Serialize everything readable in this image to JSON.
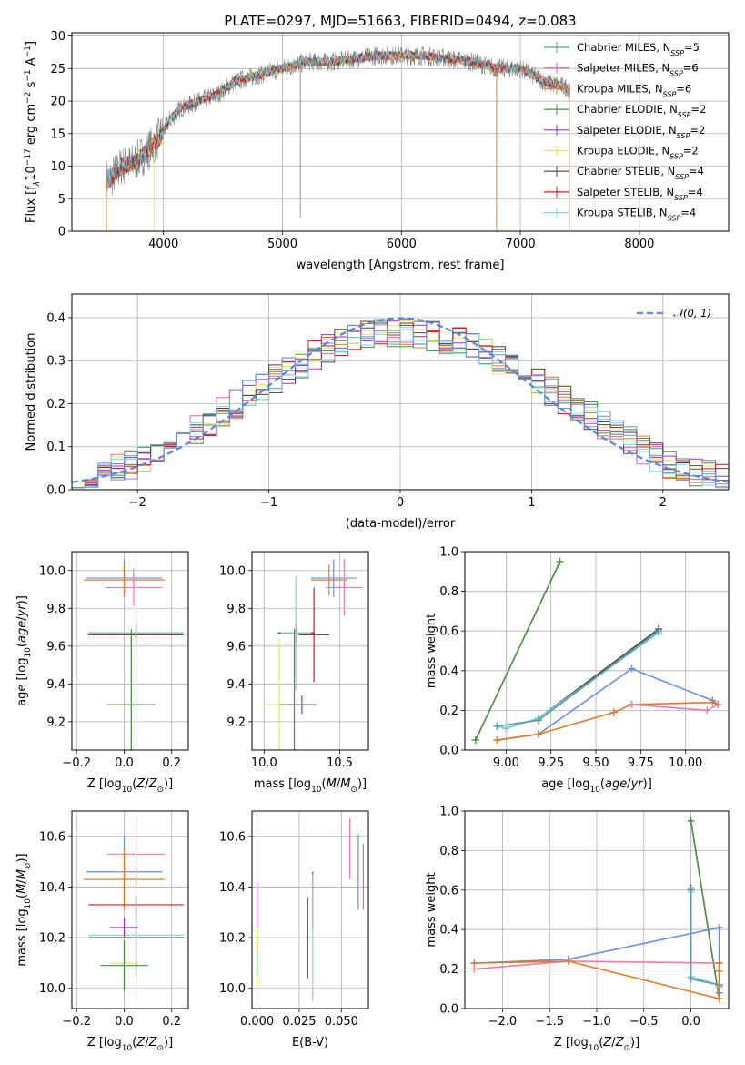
{
  "colors": {
    "Chabrier MILES": "#5b9ca0",
    "Salpeter MILES": "#d966a8",
    "Kroupa MILES": "#e07b2a",
    "Chabrier ELODIE": "#4a8a4a",
    "Salpeter ELODIE": "#9b30c8",
    "Kroupa ELODIE": "#e6e65a",
    "Chabrier STELIB": "#444444",
    "Salpeter STELIB": "#cc1f1f",
    "Kroupa STELIB": "#7fd6e0",
    "blue": "#6a8ee0",
    "pink": "#f07aa8",
    "grid": "#b0b0b0",
    "data": "#808080",
    "normal_curve": "#5b86d8"
  },
  "chart_data": [
    {
      "id": "spectrum",
      "type": "line",
      "title": "PLATE=0297, MJD=51663, FIBERID=0494, z=0.083",
      "xlabel": "wavelength [Angstrom, rest frame]",
      "ylabel_parts": [
        "Flux [f",
        "λ",
        "10",
        "−17",
        " erg cm",
        "−2",
        " s",
        "−1",
        " A",
        "−1",
        "]"
      ],
      "xlim": [
        3230,
        8750
      ],
      "ylim": [
        0,
        30.5
      ],
      "xticks": [
        4000,
        5000,
        6000,
        7000,
        8000
      ],
      "yticks": [
        0,
        5,
        10,
        15,
        20,
        25,
        30
      ],
      "anchors_x": [
        3550,
        3650,
        3750,
        3850,
        3950,
        4050,
        4150,
        4300,
        4450,
        4600,
        4800,
        5000,
        5200,
        5400,
        5600,
        5800,
        6000,
        6200,
        6400,
        6600,
        6800,
        7000,
        7200,
        7400
      ],
      "anchors_y": [
        8,
        10,
        10.5,
        12,
        14,
        17,
        19,
        20,
        21,
        23,
        24,
        25,
        26,
        26,
        26.5,
        27,
        27,
        27,
        26.5,
        26,
        25,
        25,
        23,
        22
      ],
      "model_dips": [
        {
          "x": 3520,
          "series": "Kroupa MILES"
        },
        {
          "x": 3920,
          "series": "Kroupa ELODIE"
        },
        {
          "x": 6800,
          "series": "Kroupa MILES"
        },
        {
          "x": 7410,
          "series": "Kroupa MILES"
        }
      ],
      "legend": [
        {
          "label": "Chabrier MILES, N",
          "sub": "SSP",
          "tail": "=5"
        },
        {
          "label": "Salpeter MILES, N",
          "sub": "SSP",
          "tail": "=6"
        },
        {
          "label": "Kroupa MILES, N",
          "sub": "SSP",
          "tail": "=6"
        },
        {
          "label": "Chabrier ELODIE, N",
          "sub": "SSP",
          "tail": "=2"
        },
        {
          "label": "Salpeter ELODIE, N",
          "sub": "SSP",
          "tail": "=2"
        },
        {
          "label": "Kroupa ELODIE, N",
          "sub": "SSP",
          "tail": "=2"
        },
        {
          "label": "Chabrier STELIB, N",
          "sub": "SSP",
          "tail": "=4"
        },
        {
          "label": "Salpeter STELIB, N",
          "sub": "SSP",
          "tail": "=4"
        },
        {
          "label": "Kroupa STELIB, N",
          "sub": "SSP",
          "tail": "=4"
        }
      ],
      "legend_series": [
        "Chabrier MILES",
        "Salpeter MILES",
        "Kroupa MILES",
        "Chabrier ELODIE",
        "Salpeter ELODIE",
        "Kroupa ELODIE",
        "Chabrier STELIB",
        "Salpeter STELIB",
        "Kroupa STELIB"
      ],
      "legend_position": "upper right"
    },
    {
      "id": "residuals",
      "type": "step",
      "xlabel": "(data-model)/error",
      "ylabel": "Normed distribution",
      "xlim": [
        -2.5,
        2.5
      ],
      "ylim": [
        0,
        0.455
      ],
      "xticks": [
        -2,
        -1,
        0,
        1,
        2
      ],
      "yticks": [
        0.0,
        0.1,
        0.2,
        0.3,
        0.4
      ],
      "bin_width": 0.1,
      "envelope_x": [
        -2.5,
        -2.0,
        -1.5,
        -1.0,
        -0.5,
        -0.2,
        0.0,
        0.2,
        0.5,
        1.0,
        1.5,
        2.0,
        2.5
      ],
      "envelope_y": [
        0.03,
        0.06,
        0.15,
        0.25,
        0.34,
        0.36,
        0.37,
        0.36,
        0.34,
        0.26,
        0.16,
        0.065,
        0.02
      ],
      "normal_curve": {
        "label": "𝒩(0, 1)",
        "mu": 0,
        "sigma": 1,
        "style": "dashed"
      },
      "legend_position": "upper right"
    },
    {
      "id": "age_vs_Z",
      "type": "errorbar",
      "xlabel": "Z [log10(Z/Z⊙)]",
      "ylabel": "age  [log10(age/yr)]",
      "xlim": [
        -0.22,
        0.27
      ],
      "ylim": [
        9.05,
        10.1
      ],
      "xticks": [
        -0.2,
        0.0,
        0.2
      ],
      "yticks": [
        9.2,
        9.4,
        9.6,
        9.8,
        10.0
      ],
      "points": [
        {
          "c": "blue",
          "x": 0.0,
          "xerr": 0.16,
          "y": 9.96,
          "yerr": 0.1
        },
        {
          "c": "Kroupa MILES",
          "x": 0.0,
          "xerr": 0.17,
          "y": 9.95,
          "yerr": 0.08
        },
        {
          "c": "pink",
          "x": 0.04,
          "xerr": 0.12,
          "y": 9.91,
          "yerr": 0.1
        },
        {
          "c": "Salpeter STELIB",
          "x": 0.05,
          "xerr": 0.2,
          "y": 9.66,
          "yerr": 0.05
        },
        {
          "c": "Chabrier STELIB",
          "x": 0.05,
          "xerr": 0.2,
          "y": 9.67,
          "yerr": 0.05
        },
        {
          "c": "Kroupa STELIB",
          "x": 0.05,
          "xerr": 0.2,
          "y": 9.67,
          "yerr": 0.6
        },
        {
          "c": "Kroupa ELODIE",
          "x": 0.03,
          "xerr": 0.08,
          "y": 9.29,
          "yerr": 0.35
        },
        {
          "c": "Chabrier ELODIE",
          "x": 0.03,
          "xerr": 0.1,
          "y": 9.29,
          "yerr": 0.4
        }
      ]
    },
    {
      "id": "age_vs_mass",
      "type": "errorbar",
      "xlabel": "mass [log10(M/M⊙)]",
      "ylabel": "",
      "xlim": [
        9.92,
        10.69
      ],
      "ylim": [
        9.05,
        10.1
      ],
      "xticks": [
        10.0,
        10.5
      ],
      "yticks": [
        9.2,
        9.4,
        9.6,
        9.8,
        10.0
      ],
      "points": [
        {
          "c": "blue",
          "x": 10.46,
          "xerr": 0.15,
          "y": 9.96,
          "yerr": 0.1
        },
        {
          "c": "Kroupa MILES",
          "x": 10.43,
          "xerr": 0.12,
          "y": 9.95,
          "yerr": 0.08
        },
        {
          "c": "pink",
          "x": 10.53,
          "xerr": 0.12,
          "y": 9.91,
          "yerr": 0.15
        },
        {
          "c": "Salpeter STELIB",
          "x": 10.33,
          "xerr": 0.1,
          "y": 9.66,
          "yerr": 0.25
        },
        {
          "c": "Chabrier STELIB",
          "x": 10.21,
          "xerr": 0.12,
          "y": 9.67,
          "yerr": 0.05
        },
        {
          "c": "Kroupa STELIB",
          "x": 10.21,
          "xerr": 0.1,
          "y": 9.67,
          "yerr": 0.3
        },
        {
          "c": "Kroupa ELODIE",
          "x": 10.1,
          "xerr": 0.1,
          "y": 9.29,
          "yerr": 0.35
        },
        {
          "c": "Salpeter ELODIE",
          "x": 10.25,
          "xerr": 0.1,
          "y": 9.29,
          "yerr": 0.05
        },
        {
          "c": "Chabrier ELODIE",
          "x": 10.2,
          "xerr": 0.1,
          "y": 9.29,
          "yerr": 0.4
        }
      ]
    },
    {
      "id": "weight_vs_age",
      "type": "line",
      "xlabel": "age  [log10(age/yr)]",
      "ylabel": "mass weight",
      "xlim": [
        8.77,
        10.24
      ],
      "ylim": [
        0,
        1.0
      ],
      "xticks": [
        9.0,
        9.25,
        9.5,
        9.75,
        10.0
      ],
      "xtick_labels": [
        "9.00",
        "9.25",
        "9.50",
        "9.75",
        "10.00"
      ],
      "yticks": [
        0.0,
        0.2,
        0.4,
        0.6,
        0.8,
        1.0
      ],
      "series": [
        {
          "c": "Kroupa ELODIE",
          "x": [
            8.83,
            9.3
          ],
          "y": [
            0.05,
            0.95
          ]
        },
        {
          "c": "Chabrier ELODIE",
          "x": [
            8.83,
            9.3
          ],
          "y": [
            0.05,
            0.95
          ]
        },
        {
          "c": "Chabrier STELIB",
          "x": [
            8.95,
            9.0,
            9.18,
            9.85
          ],
          "y": [
            0.12,
            0.11,
            0.16,
            0.61
          ]
        },
        {
          "c": "Kroupa STELIB",
          "x": [
            8.95,
            9.0,
            9.18,
            9.85
          ],
          "y": [
            0.12,
            0.11,
            0.16,
            0.59
          ]
        },
        {
          "c": "Chabrier MILES",
          "x": [
            8.95,
            9.18,
            9.85
          ],
          "y": [
            0.12,
            0.15,
            0.6
          ]
        },
        {
          "c": "blue",
          "x": [
            8.95,
            9.18,
            9.7,
            10.15,
            10.18
          ],
          "y": [
            0.05,
            0.08,
            0.41,
            0.25,
            0.23
          ]
        },
        {
          "c": "Kroupa MILES",
          "x": [
            8.95,
            9.18,
            9.6,
            9.7,
            10.15,
            10.18
          ],
          "y": [
            0.05,
            0.08,
            0.19,
            0.23,
            0.24,
            0.23
          ]
        },
        {
          "c": "pink",
          "x": [
            9.7,
            10.12,
            10.18
          ],
          "y": [
            0.23,
            0.2,
            0.23
          ]
        }
      ]
    },
    {
      "id": "mass_vs_Z",
      "type": "errorbar",
      "xlabel": "Z [log10(Z/Z⊙)]",
      "ylabel": "mass [log10(M/M⊙)]",
      "xlim": [
        -0.22,
        0.27
      ],
      "ylim": [
        9.92,
        10.7
      ],
      "xticks": [
        -0.2,
        0.0,
        0.2
      ],
      "yticks": [
        10.0,
        10.2,
        10.4,
        10.6
      ],
      "points": [
        {
          "c": "blue",
          "x": 0.0,
          "xerr": 0.16,
          "y": 10.46,
          "yerr": 0.14
        },
        {
          "c": "Kroupa MILES",
          "x": 0.0,
          "xerr": 0.17,
          "y": 10.43,
          "yerr": 0.12
        },
        {
          "c": "pink",
          "x": 0.05,
          "xerr": 0.12,
          "y": 10.53,
          "yerr": 0.14
        },
        {
          "c": "Salpeter STELIB",
          "x": 0.05,
          "xerr": 0.2,
          "y": 10.33,
          "yerr": 0.04
        },
        {
          "c": "Chabrier STELIB",
          "x": 0.05,
          "xerr": 0.2,
          "y": 10.2,
          "yerr": 0.16
        },
        {
          "c": "Kroupa STELIB",
          "x": 0.05,
          "xerr": 0.2,
          "y": 10.21,
          "yerr": 0.25
        },
        {
          "c": "Salpeter ELODIE",
          "x": 0.0,
          "xerr": 0.06,
          "y": 10.24,
          "yerr": 0.04
        },
        {
          "c": "Kroupa ELODIE",
          "x": 0.0,
          "xerr": 0.06,
          "y": 10.1,
          "yerr": 0.1
        },
        {
          "c": "Chabrier ELODIE",
          "x": 0.0,
          "xerr": 0.1,
          "y": 10.09,
          "yerr": 0.1
        }
      ]
    },
    {
      "id": "mass_vs_ebv",
      "type": "errorbar",
      "xlabel": "E(B-V)",
      "ylabel": "",
      "xlim": [
        -0.003,
        0.066
      ],
      "ylim": [
        9.92,
        10.7
      ],
      "xticks": [
        0.0,
        0.025,
        0.05
      ],
      "xtick_labels": [
        "0.000",
        "0.025",
        "0.050"
      ],
      "yticks": [
        10.0,
        10.2,
        10.4,
        10.6
      ],
      "points": [
        {
          "c": "Salpeter ELODIE",
          "x": 0.0,
          "xerr": 0,
          "y": 10.24,
          "yerr": 0.18
        },
        {
          "c": "Kroupa ELODIE",
          "x": 0.0,
          "xerr": 0,
          "y": 10.12,
          "yerr": 0.12
        },
        {
          "c": "Chabrier ELODIE",
          "x": 0.0,
          "xerr": 0,
          "y": 10.1,
          "yerr": 0.05
        },
        {
          "c": "Chabrier STELIB",
          "x": 0.03,
          "xerr": 0,
          "y": 10.2,
          "yerr": 0.16
        },
        {
          "c": "Salpeter STELIB",
          "x": 0.033,
          "xerr": 0,
          "y": 10.35,
          "yerr": 0.11
        },
        {
          "c": "Kroupa STELIB",
          "x": 0.033,
          "xerr": 0,
          "y": 10.2,
          "yerr": 0.25
        },
        {
          "c": "pink",
          "x": 0.055,
          "xerr": 0,
          "y": 10.55,
          "yerr": 0.12
        },
        {
          "c": "blue",
          "x": 0.06,
          "xerr": 0,
          "y": 10.46,
          "yerr": 0.15
        },
        {
          "c": "Kroupa MILES",
          "x": 0.063,
          "xerr": 0,
          "y": 10.44,
          "yerr": 0.13
        }
      ]
    },
    {
      "id": "weight_vs_Z",
      "type": "line",
      "xlabel": "Z [log10(Z/Z⊙)]",
      "ylabel": "mass weight",
      "xlim": [
        -2.4,
        0.4
      ],
      "ylim": [
        0,
        1.0
      ],
      "xticks": [
        -2.0,
        -1.5,
        -1.0,
        -0.5,
        0.0
      ],
      "yticks": [
        0.0,
        0.2,
        0.4,
        0.6,
        0.8,
        1.0
      ],
      "series": [
        {
          "c": "Kroupa ELODIE",
          "x": [
            0.0,
            0.3
          ],
          "y": [
            0.95,
            0.05
          ]
        },
        {
          "c": "Chabrier ELODIE",
          "x": [
            0.0,
            0.3
          ],
          "y": [
            0.95,
            0.05
          ]
        },
        {
          "c": "Chabrier STELIB",
          "x": [
            0.0,
            0.0,
            0.3,
            0.3
          ],
          "y": [
            0.61,
            0.16,
            0.12,
            0.11
          ]
        },
        {
          "c": "Kroupa STELIB",
          "x": [
            0.0,
            0.0,
            0.3,
            0.3
          ],
          "y": [
            0.59,
            0.16,
            0.12,
            0.11
          ]
        },
        {
          "c": "Chabrier MILES",
          "x": [
            0.0,
            0.0,
            0.3
          ],
          "y": [
            0.6,
            0.15,
            0.12
          ]
        },
        {
          "c": "blue",
          "x": [
            -2.3,
            -1.3,
            0.3,
            0.3,
            0.3
          ],
          "y": [
            0.23,
            0.25,
            0.41,
            0.08,
            0.05
          ]
        },
        {
          "c": "pink",
          "x": [
            -2.3,
            -1.3,
            0.3
          ],
          "y": [
            0.2,
            0.24,
            0.23
          ]
        },
        {
          "c": "Kroupa MILES",
          "x": [
            -2.3,
            -1.3,
            0.3,
            0.3,
            0.3
          ],
          "y": [
            0.23,
            0.24,
            0.05,
            0.19,
            0.23
          ]
        }
      ]
    }
  ]
}
